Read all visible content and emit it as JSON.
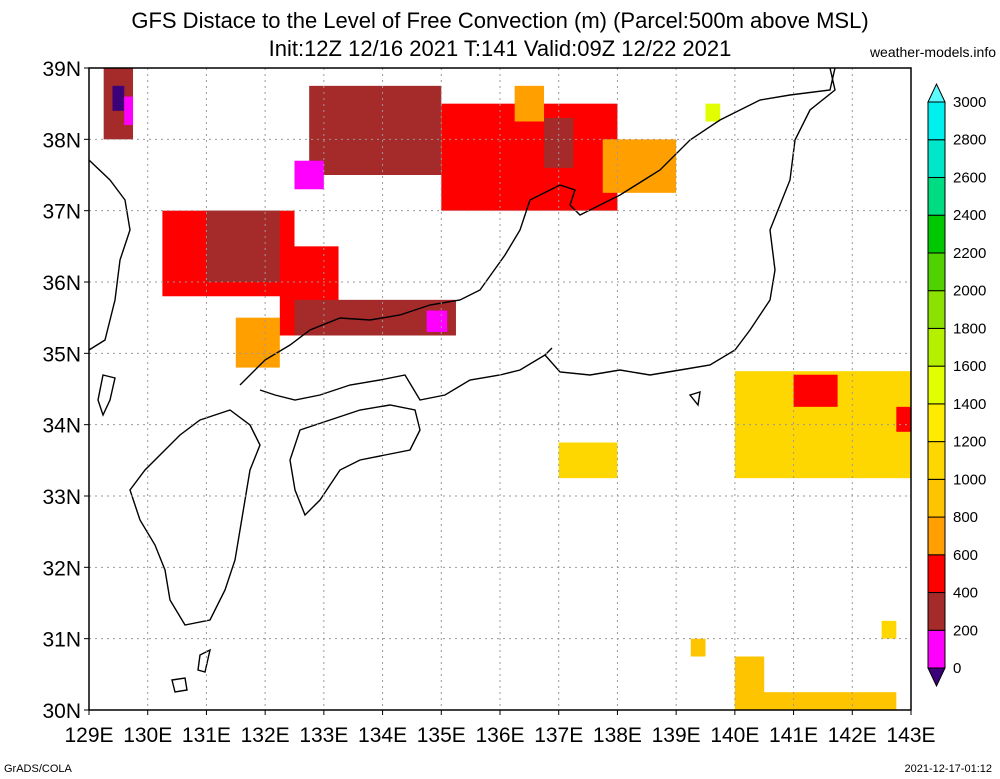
{
  "header": {
    "title_line1": "GFS Distace to the Level of Free Convection (m) (Parcel:500m above MSL)",
    "title_line2": "Init:12Z 12/16 2021 T:141 Valid:09Z 12/22 2021",
    "site": "weather-models.info"
  },
  "footer": {
    "left": "GrADS/COLA",
    "right": "2021-12-17-01:12"
  },
  "map": {
    "lon_labels": [
      "129E",
      "130E",
      "131E",
      "132E",
      "133E",
      "134E",
      "135E",
      "136E",
      "137E",
      "138E",
      "139E",
      "140E",
      "141E",
      "142E",
      "143E"
    ],
    "lat_labels": [
      "39N",
      "38N",
      "37N",
      "36N",
      "35N",
      "34N",
      "33N",
      "32N",
      "31N",
      "30N"
    ],
    "lon_range": [
      129,
      143
    ],
    "lat_range": [
      30,
      39
    ],
    "grid": "dotted"
  },
  "colorbar": {
    "levels": [
      "0",
      "200",
      "400",
      "600",
      "800",
      "1000",
      "1200",
      "1400",
      "1600",
      "1800",
      "2000",
      "2200",
      "2400",
      "2600",
      "2800",
      "3000"
    ],
    "colors": [
      "#3c0078",
      "#ff00ff",
      "#a52a2a",
      "#ff0000",
      "#ffa000",
      "#ffc400",
      "#ffd700",
      "#ffeb00",
      "#e1ff00",
      "#b4f000",
      "#8ce100",
      "#50d200",
      "#00c800",
      "#00dc82",
      "#00e6c8",
      "#00f0f0",
      "#5afaff"
    ]
  },
  "fields": [
    {
      "name": "brown-nw-coast",
      "color": "#a52a2a",
      "lon": [
        129.25,
        129.75
      ],
      "lat": [
        38.0,
        39.0
      ]
    },
    {
      "name": "purple-nw",
      "color": "#3c0078",
      "lon": [
        129.4,
        129.6
      ],
      "lat": [
        38.4,
        38.75
      ]
    },
    {
      "name": "magenta-nw",
      "color": "#ff00ff",
      "lon": [
        129.6,
        129.75
      ],
      "lat": [
        38.2,
        38.6
      ]
    },
    {
      "name": "red-sea-west",
      "color": "#ff0000",
      "lon": [
        130.25,
        132.5
      ],
      "lat": [
        35.8,
        37.0
      ]
    },
    {
      "name": "brown-sea-west",
      "color": "#a52a2a",
      "lon": [
        131.0,
        132.25
      ],
      "lat": [
        36.0,
        37.0
      ]
    },
    {
      "name": "orange-korea-strait",
      "color": "#ffa000",
      "lon": [
        131.5,
        132.25
      ],
      "lat": [
        34.8,
        35.5
      ]
    },
    {
      "name": "brown-central",
      "color": "#a52a2a",
      "lon": [
        132.75,
        135.0
      ],
      "lat": [
        37.5,
        38.75
      ]
    },
    {
      "name": "magenta-central",
      "color": "#ff00ff",
      "lon": [
        132.5,
        133.0
      ],
      "lat": [
        37.3,
        37.7
      ]
    },
    {
      "name": "red-oki",
      "color": "#ff0000",
      "lon": [
        132.25,
        133.25
      ],
      "lat": [
        35.25,
        36.5
      ]
    },
    {
      "name": "brown-oki",
      "color": "#a52a2a",
      "lon": [
        132.5,
        135.25
      ],
      "lat": [
        35.25,
        35.75
      ]
    },
    {
      "name": "magenta-wakasa",
      "color": "#ff00ff",
      "lon": [
        134.75,
        135.1
      ],
      "lat": [
        35.3,
        35.6
      ]
    },
    {
      "name": "red-noto",
      "color": "#ff0000",
      "lon": [
        135.0,
        138.0
      ],
      "lat": [
        37.0,
        38.5
      ]
    },
    {
      "name": "brown-noto",
      "color": "#a52a2a",
      "lon": [
        136.75,
        137.25
      ],
      "lat": [
        37.6,
        38.3
      ]
    },
    {
      "name": "orange-sado",
      "color": "#ffa000",
      "lon": [
        137.75,
        139.0
      ],
      "lat": [
        37.25,
        38.0
      ]
    },
    {
      "name": "orange-north",
      "color": "#ffa000",
      "lon": [
        136.25,
        136.75
      ],
      "lat": [
        38.25,
        38.75
      ]
    },
    {
      "name": "yellowgreen-north",
      "color": "#e1ff00",
      "lon": [
        139.5,
        139.75
      ],
      "lat": [
        38.25,
        38.5
      ]
    },
    {
      "name": "yellow-pacific-east",
      "color": "#ffd700",
      "lon": [
        140.0,
        143.0
      ],
      "lat": [
        33.25,
        34.75
      ]
    },
    {
      "name": "red-pacific-east",
      "color": "#ff0000",
      "lon": [
        141.0,
        141.75
      ],
      "lat": [
        34.25,
        34.7
      ]
    },
    {
      "name": "red-pacific-edge",
      "color": "#ff0000",
      "lon": [
        142.75,
        143.0
      ],
      "lat": [
        33.9,
        34.25
      ]
    },
    {
      "name": "yellow-pacific-mid",
      "color": "#ffd700",
      "lon": [
        137.0,
        138.0
      ],
      "lat": [
        33.25,
        33.75
      ]
    },
    {
      "name": "yellow-south",
      "color": "#ffc400",
      "lon": [
        140.0,
        142.75
      ],
      "lat": [
        30.0,
        30.25
      ]
    },
    {
      "name": "yellow-south-block",
      "color": "#ffc400",
      "lon": [
        140.0,
        140.5
      ],
      "lat": [
        30.0,
        30.75
      ]
    },
    {
      "name": "yellow-south-dot1",
      "color": "#ffc400",
      "lon": [
        139.25,
        139.5
      ],
      "lat": [
        30.75,
        31.0
      ]
    },
    {
      "name": "yellow-south-dot2",
      "color": "#ffd700",
      "lon": [
        142.5,
        142.75
      ],
      "lat": [
        31.0,
        31.25
      ]
    }
  ]
}
